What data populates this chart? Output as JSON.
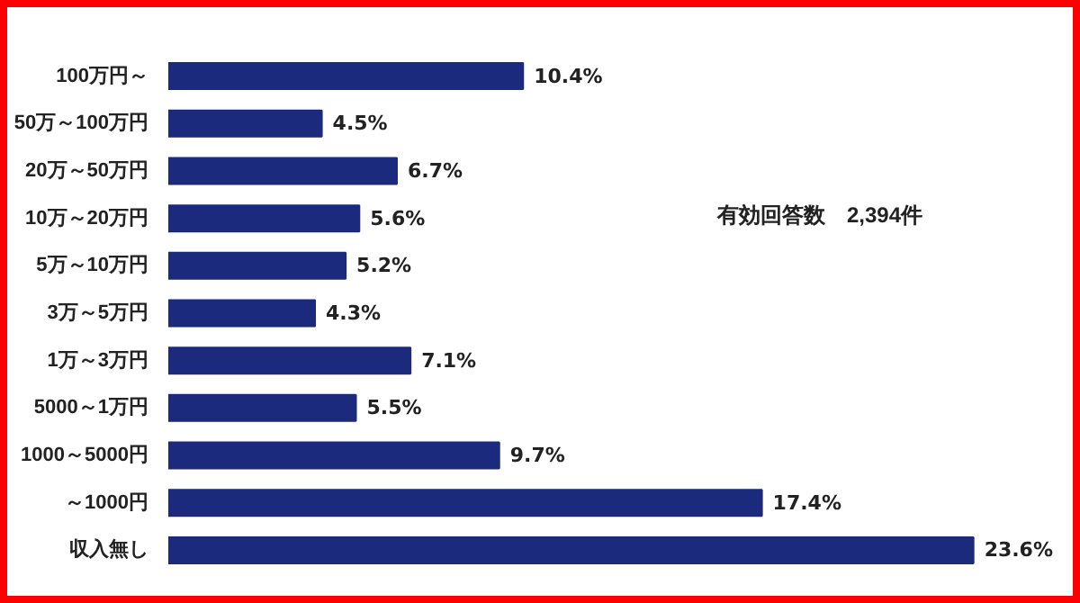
{
  "chart_data": {
    "type": "bar",
    "orientation": "horizontal",
    "categories": [
      "100万円～",
      "50万～100万円",
      "20万～50万円",
      "10万～20万円",
      "5万～10万円",
      "3万～5万円",
      "1万～3万円",
      "5000～1万円",
      "1000～5000円",
      "～1000円",
      "収入無し"
    ],
    "values": [
      10.4,
      4.5,
      6.7,
      5.6,
      5.2,
      4.3,
      7.1,
      5.5,
      9.7,
      17.4,
      23.6
    ],
    "value_labels": [
      "10.4%",
      "4.5%",
      "6.7%",
      "5.6%",
      "5.2%",
      "4.3%",
      "7.1%",
      "5.5%",
      "9.7%",
      "17.4%",
      "23.6%"
    ],
    "color": "#1b2a7c",
    "grid": false,
    "annotations": [
      "有効回答数　2,394件"
    ]
  }
}
